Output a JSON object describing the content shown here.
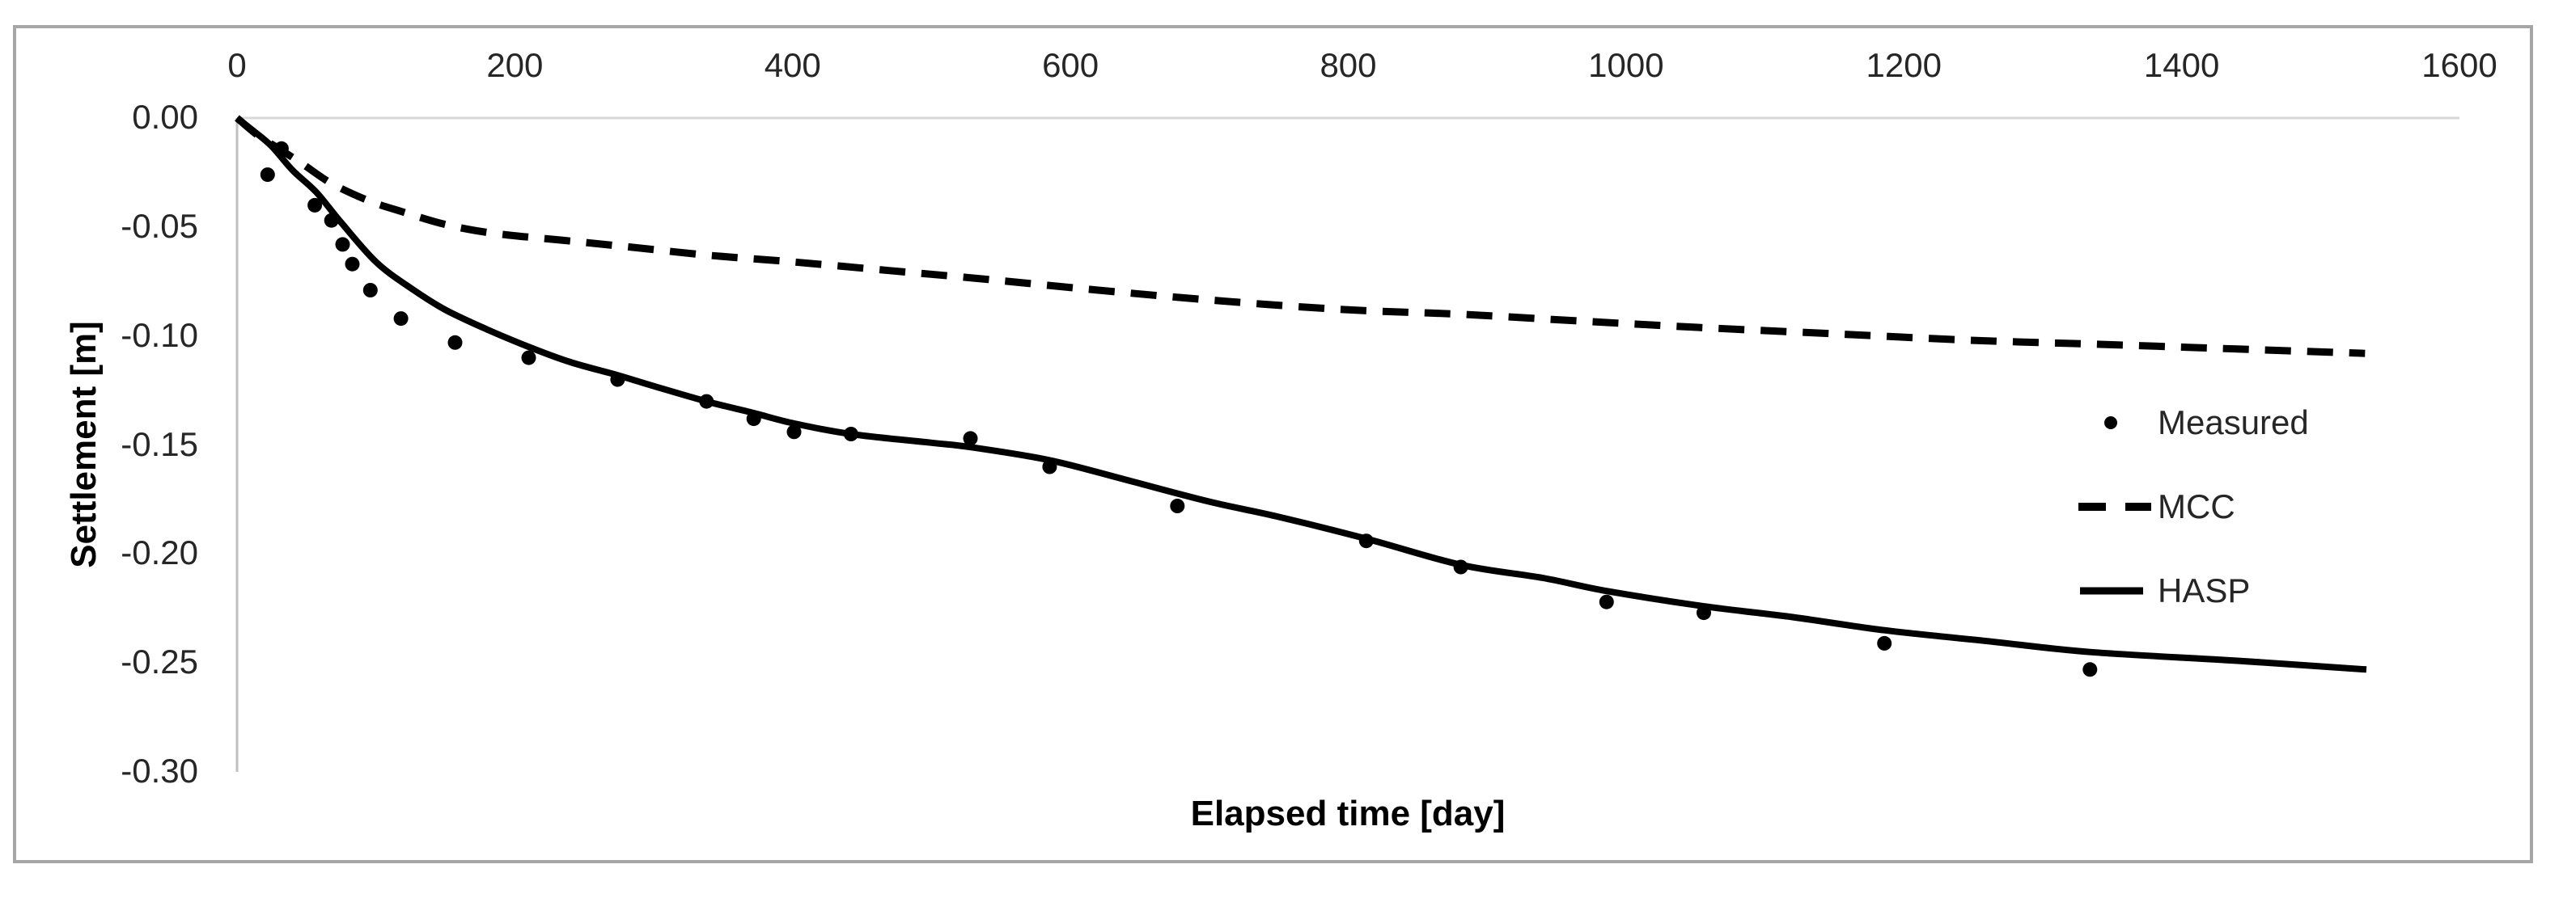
{
  "chart": {
    "background": "#ffffff",
    "frame_color": "#a6a6a6",
    "axis_line_color": "#bfbfbf",
    "gridline_color": "#d9d9d9",
    "series_color": "#000000",
    "x_axis": {
      "title": "Elapsed time [day]",
      "tick_labels": [
        "0",
        "200",
        "400",
        "600",
        "800",
        "1000",
        "1200",
        "1400",
        "1600"
      ],
      "min": 0,
      "max": 1600
    },
    "y_axis": {
      "title": "Settlement [m]",
      "tick_labels": [
        "0.00",
        "-0.05",
        "-0.10",
        "-0.15",
        "-0.20",
        "-0.25",
        "-0.30"
      ],
      "min": -0.3,
      "max": 0.0
    },
    "legend": {
      "items": [
        {
          "label": "Measured",
          "marker": "dot"
        },
        {
          "label": "MCC",
          "marker": "dashed-line"
        },
        {
          "label": "HASP",
          "marker": "solid-line"
        }
      ]
    }
  },
  "chart_data": {
    "type": "line",
    "title": "",
    "xlabel": "Elapsed time [day]",
    "ylabel": "Settlement [m]",
    "xlim": [
      0,
      1600
    ],
    "ylim": [
      -0.3,
      0.0
    ],
    "grid": "zero-line-only",
    "legend_position": "middle-right",
    "series": [
      {
        "name": "Measured",
        "type": "scatter",
        "marker": "filled-circle",
        "color": "#000000",
        "points": [
          [
            22,
            -0.026
          ],
          [
            32,
            -0.014
          ],
          [
            56,
            -0.04
          ],
          [
            68,
            -0.047
          ],
          [
            76,
            -0.058
          ],
          [
            83,
            -0.067
          ],
          [
            96,
            -0.079
          ],
          [
            118,
            -0.092
          ],
          [
            157,
            -0.103
          ],
          [
            210,
            -0.11
          ],
          [
            274,
            -0.12
          ],
          [
            338,
            -0.13
          ],
          [
            372,
            -0.138
          ],
          [
            401,
            -0.144
          ],
          [
            442,
            -0.145
          ],
          [
            528,
            -0.147
          ],
          [
            585,
            -0.16
          ],
          [
            677,
            -0.178
          ],
          [
            813,
            -0.194
          ],
          [
            881,
            -0.206
          ],
          [
            986,
            -0.222
          ],
          [
            1056,
            -0.227
          ],
          [
            1186,
            -0.241
          ],
          [
            1334,
            -0.253
          ]
        ]
      },
      {
        "name": "MCC",
        "type": "line",
        "style": "dashed",
        "color": "#000000",
        "points": [
          [
            0,
            0
          ],
          [
            15,
            -0.008
          ],
          [
            30,
            -0.014
          ],
          [
            47,
            -0.021
          ],
          [
            68,
            -0.03
          ],
          [
            95,
            -0.038
          ],
          [
            119,
            -0.043
          ],
          [
            151,
            -0.049
          ],
          [
            186,
            -0.053
          ],
          [
            233,
            -0.056
          ],
          [
            280,
            -0.059
          ],
          [
            340,
            -0.063
          ],
          [
            400,
            -0.066
          ],
          [
            470,
            -0.07
          ],
          [
            540,
            -0.074
          ],
          [
            620,
            -0.079
          ],
          [
            710,
            -0.084
          ],
          [
            800,
            -0.088
          ],
          [
            880,
            -0.09
          ],
          [
            963,
            -0.093
          ],
          [
            1050,
            -0.096
          ],
          [
            1150,
            -0.099
          ],
          [
            1250,
            -0.102
          ],
          [
            1350,
            -0.104
          ],
          [
            1440,
            -0.106
          ],
          [
            1532,
            -0.108
          ]
        ]
      },
      {
        "name": "HASP",
        "type": "line",
        "style": "solid",
        "color": "#000000",
        "points": [
          [
            0,
            0
          ],
          [
            12,
            -0.006
          ],
          [
            25,
            -0.013
          ],
          [
            40,
            -0.024
          ],
          [
            57,
            -0.034
          ],
          [
            75,
            -0.048
          ],
          [
            100,
            -0.066
          ],
          [
            125,
            -0.078
          ],
          [
            150,
            -0.088
          ],
          [
            180,
            -0.097
          ],
          [
            210,
            -0.105
          ],
          [
            240,
            -0.112
          ],
          [
            274,
            -0.118
          ],
          [
            300,
            -0.123
          ],
          [
            338,
            -0.13
          ],
          [
            370,
            -0.135
          ],
          [
            400,
            -0.14
          ],
          [
            442,
            -0.145
          ],
          [
            500,
            -0.149
          ],
          [
            528,
            -0.151
          ],
          [
            585,
            -0.157
          ],
          [
            640,
            -0.166
          ],
          [
            700,
            -0.176
          ],
          [
            750,
            -0.183
          ],
          [
            813,
            -0.193
          ],
          [
            881,
            -0.205
          ],
          [
            940,
            -0.211
          ],
          [
            986,
            -0.217
          ],
          [
            1056,
            -0.224
          ],
          [
            1120,
            -0.229
          ],
          [
            1186,
            -0.235
          ],
          [
            1260,
            -0.24
          ],
          [
            1334,
            -0.245
          ],
          [
            1440,
            -0.249
          ],
          [
            1533,
            -0.253
          ]
        ]
      }
    ]
  }
}
